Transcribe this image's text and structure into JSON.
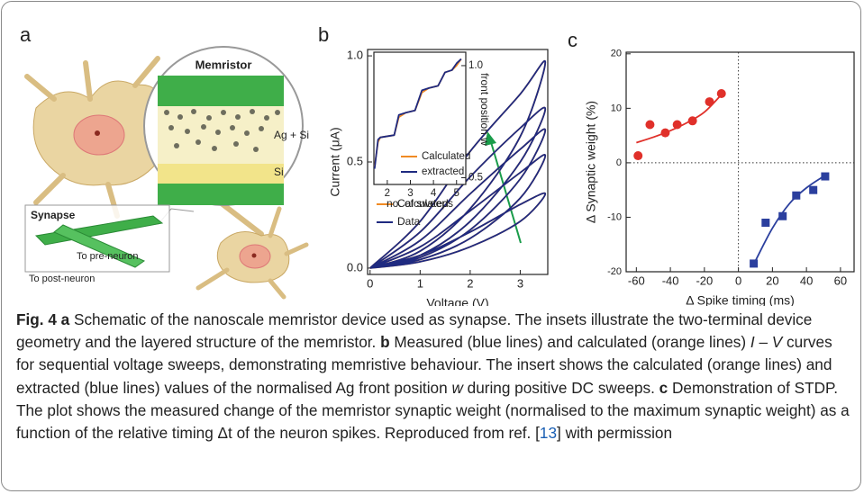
{
  "panel_labels": [
    "a",
    "b",
    "c"
  ],
  "schematic": {
    "memristor": "Memristor",
    "layer_top": "Ag + Si",
    "layer_bottom": "Si",
    "synapse": "Synapse",
    "pre": "To pre-neuron",
    "post": "To post-neuron"
  },
  "chart_data": [
    {
      "type": "line",
      "xlabel": "Voltage (V)",
      "ylabel": "Current (μA)",
      "smooth": true,
      "legend": "lower left",
      "xlim": [
        -0.05,
        3.55
      ],
      "xticks": [
        0,
        1,
        2,
        3
      ],
      "ylim": [
        -0.03,
        1.03
      ],
      "yticks": [
        {
          "value": 0,
          "label": "0.0"
        },
        {
          "value": 0.5,
          "label": "0.5"
        },
        {
          "value": 1,
          "label": "1.0"
        }
      ],
      "x": [
        0,
        1,
        2,
        3,
        3.5,
        3,
        2,
        1,
        0,
        null,
        0,
        1,
        2,
        3,
        3.5,
        3,
        2,
        1,
        0,
        null,
        0,
        1,
        2,
        3,
        3.5,
        3,
        2,
        1,
        0,
        null,
        0,
        1,
        2,
        3,
        3.5,
        3,
        2,
        1,
        0,
        null,
        0,
        1,
        2,
        3,
        3.5,
        3,
        2,
        1,
        0
      ],
      "series": [
        {
          "name": "Calculated",
          "color": "#f08a24",
          "values": [
            0,
            0.03,
            0.1,
            0.22,
            0.35,
            0.3,
            0.17,
            0.06,
            0,
            null,
            0,
            0.04,
            0.14,
            0.33,
            0.53,
            0.45,
            0.27,
            0.1,
            0,
            null,
            0,
            0.05,
            0.18,
            0.42,
            0.65,
            0.56,
            0.35,
            0.13,
            0,
            null,
            0,
            0.06,
            0.22,
            0.5,
            0.75,
            0.66,
            0.43,
            0.17,
            0,
            null,
            0,
            0.08,
            0.28,
            0.62,
            0.97,
            0.82,
            0.55,
            0.22,
            0
          ]
        },
        {
          "name": "Data",
          "color": "#1f2a80",
          "values": [
            0,
            0.03,
            0.1,
            0.22,
            0.35,
            0.3,
            0.17,
            0.06,
            0,
            null,
            0,
            0.04,
            0.14,
            0.33,
            0.53,
            0.45,
            0.27,
            0.1,
            0,
            null,
            0,
            0.05,
            0.18,
            0.42,
            0.65,
            0.56,
            0.35,
            0.13,
            0,
            null,
            0,
            0.06,
            0.22,
            0.5,
            0.75,
            0.66,
            0.43,
            0.17,
            0,
            null,
            0,
            0.08,
            0.28,
            0.62,
            0.97,
            0.82,
            0.55,
            0.22,
            0
          ]
        }
      ]
    },
    {
      "type": "line",
      "xlabel": "no. of sweeps",
      "y2label": "front position w",
      "legend": "lower right",
      "xlim": [
        1.42,
        5.4
      ],
      "xticks": [
        2,
        3,
        4,
        5
      ],
      "y2lim": [
        0.47,
        1.06
      ],
      "y2ticks": [
        0.5,
        {
          "value": 1,
          "label": "1.0"
        }
      ],
      "x": [
        1.45,
        1.6,
        1.7,
        2.3,
        2.5,
        2.8,
        3.2,
        3.5,
        3.8,
        4.2,
        4.5,
        4.8,
        5.0,
        5.2
      ],
      "series": [
        {
          "name": "Calculated",
          "color": "#f08a24",
          "axis": "y2",
          "values": [
            0.55,
            0.66,
            0.68,
            0.69,
            0.77,
            0.79,
            0.8,
            0.88,
            0.9,
            0.91,
            0.97,
            0.98,
            1.0,
            1.03
          ]
        },
        {
          "name": "extracted",
          "color": "#1f2a80",
          "axis": "y2",
          "values": [
            0.54,
            0.67,
            0.68,
            0.69,
            0.78,
            0.79,
            0.8,
            0.89,
            0.9,
            0.91,
            0.97,
            0.98,
            1.01,
            1.03
          ]
        }
      ]
    },
    {
      "type": "scatter",
      "xlabel": "Δ Spike timing (ms)",
      "ylabel": "Δ Synaptic weight (%)",
      "zero_lines": true,
      "xlim": [
        -66,
        68
      ],
      "xticks": [
        -60,
        -40,
        -20,
        0,
        20,
        40,
        60
      ],
      "ylim": [
        -20,
        20.3
      ],
      "yticks": [
        -20,
        -10,
        0,
        10,
        20
      ],
      "series": [
        {
          "color": "#e0302a",
          "marker": "circle",
          "x": [
            -59,
            -52,
            -43,
            -36,
            -27,
            -17,
            -10
          ],
          "values": [
            1.3,
            7,
            5.5,
            7,
            7.7,
            11.2,
            12.7
          ]
        },
        {
          "color": "#2b3f9e",
          "marker": "square",
          "x": [
            9,
            16,
            26,
            34,
            44,
            51
          ],
          "values": [
            -18.5,
            -11,
            -9.8,
            -6,
            -5,
            -2.5
          ]
        }
      ],
      "fits": [
        {
          "color": "#e0302a",
          "x": [
            -60,
            -50,
            -40,
            -30,
            -20,
            -10
          ],
          "values": [
            3.7,
            4.7,
            5.9,
            7.4,
            9.3,
            12.5
          ]
        },
        {
          "color": "#2b3f9e",
          "x": [
            10,
            20,
            30,
            40,
            50
          ],
          "values": [
            -18,
            -12,
            -7.5,
            -4.6,
            -2.5
          ]
        }
      ]
    }
  ],
  "caption": [
    "Fig. 4 a",
    " Schematic of the nanoscale memristor device used as synapse. The insets illustrate the two-terminal device geometry and the layered structure of the memristor. ",
    "b",
    " Measured (blue lines) and calculated (orange lines) ",
    "I – V",
    " curves for sequential voltage sweeps, demonstrating memristive behaviour. The insert shows the calculated (orange lines) and extracted (blue lines) values of the normalised Ag front position ",
    "w",
    " during positive DC sweeps. ",
    "c",
    " Demonstration of STDP. The plot shows the measured change of the memristor synaptic weight (normalised to the maximum synaptic weight) as a function of the relative timing Δt of the neuron spikes. Reproduced from ref. [",
    "13",
    "] with permission"
  ]
}
